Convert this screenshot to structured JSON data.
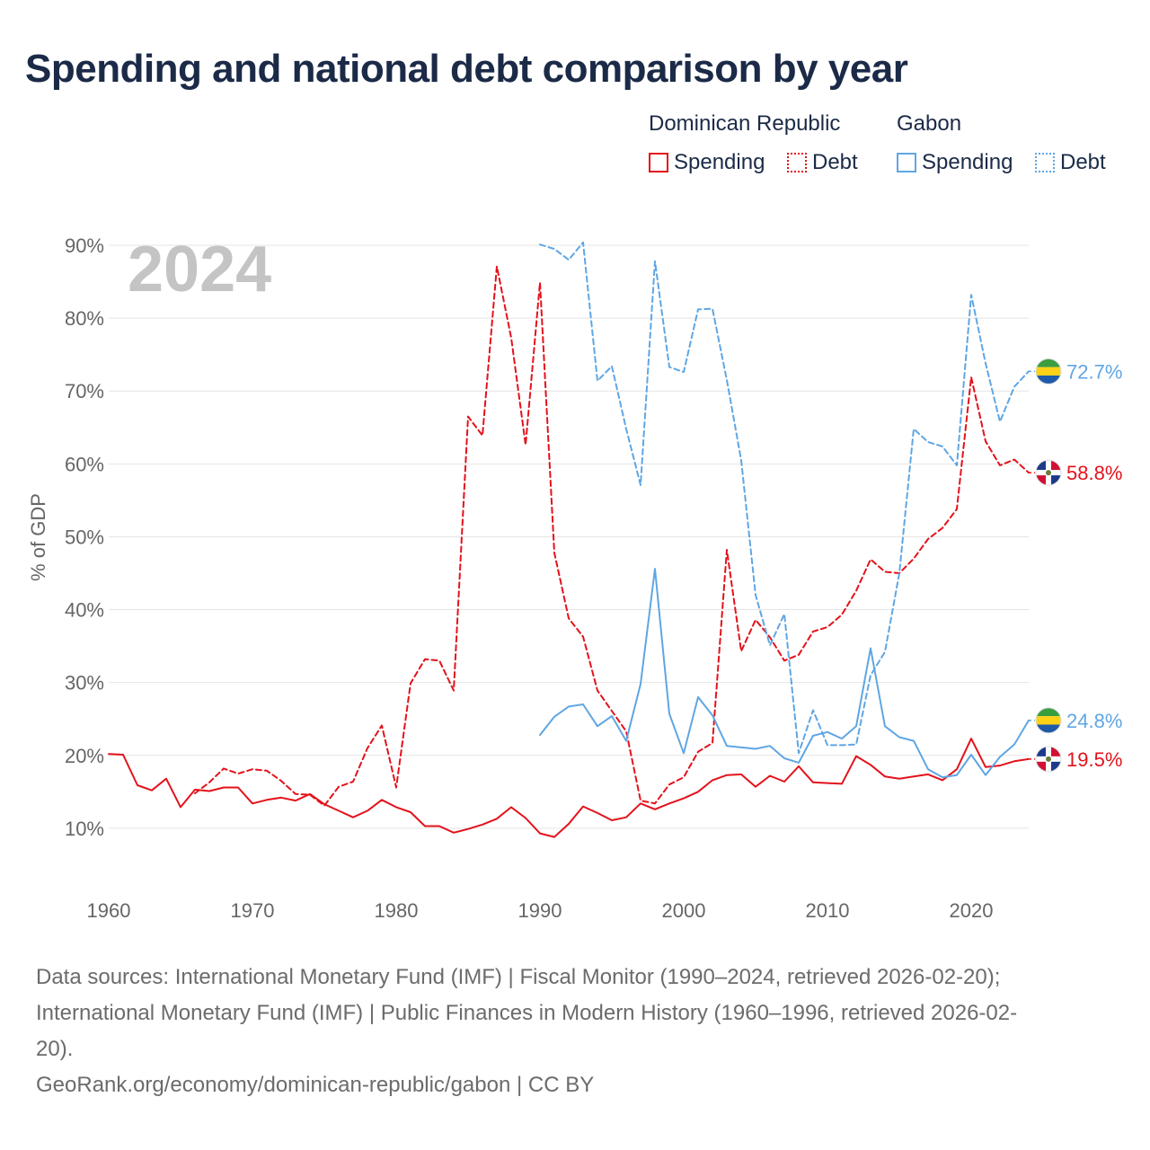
{
  "chart_data": {
    "type": "line",
    "title": "Spending and national debt comparison by year",
    "ylabel": "% of GDP",
    "xlabel": "",
    "xlim": [
      1960,
      2024
    ],
    "ylim": [
      0,
      90
    ],
    "x_ticks": [
      1960,
      1970,
      1980,
      1990,
      2000,
      2010,
      2020
    ],
    "x_tick_labels": [
      "1960",
      "1970",
      "1980",
      "1990",
      "2000",
      "2010",
      "2020"
    ],
    "y_ticks": [
      10,
      20,
      30,
      40,
      50,
      60,
      70,
      80,
      90
    ],
    "y_tick_labels": [
      "10%",
      "20%",
      "30%",
      "40%",
      "50%",
      "60%",
      "70%",
      "80%",
      "90%"
    ],
    "watermark_year": "2024",
    "legend": {
      "groups": [
        {
          "name": "Dominican Republic",
          "items": [
            {
              "label": "Spending",
              "style": "solid"
            },
            {
              "label": "Debt",
              "style": "dotted"
            }
          ]
        },
        {
          "name": "Gabon",
          "items": [
            {
              "label": "Spending",
              "style": "solid"
            },
            {
              "label": "Debt",
              "style": "dotted"
            }
          ]
        }
      ]
    },
    "series": [
      {
        "name": "Dominican Republic Spending",
        "country": "Dominican Republic",
        "color": "#e3121b",
        "dash": "solid",
        "end_label": "19.5%",
        "start_year": 1960,
        "values": [
          20.2,
          20.1,
          15.9,
          15.2,
          16.8,
          12.9,
          15.3,
          15.1,
          15.6,
          15.6,
          13.4,
          13.9,
          14.2,
          13.8,
          14.7,
          13.3,
          12.4,
          11.5,
          12.4,
          13.9,
          12.9,
          12.2,
          10.3,
          10.3,
          9.4,
          9.9,
          10.5,
          11.3,
          12.9,
          11.4,
          9.3,
          8.8,
          10.6,
          13.0,
          12.1,
          11.1,
          11.5,
          13.4,
          12.6,
          13.4,
          14.1,
          15.0,
          16.6,
          17.3,
          17.4,
          15.7,
          17.2,
          16.4,
          18.5,
          16.3,
          16.2,
          16.1,
          19.9,
          18.7,
          17.1,
          16.8,
          17.1,
          17.4,
          16.6,
          18.1,
          22.3,
          18.4,
          18.6,
          19.2,
          19.5
        ]
      },
      {
        "name": "Dominican Republic Debt",
        "country": "Dominican Republic",
        "color": "#e3121b",
        "dash": "dashed",
        "end_label": "58.8%",
        "start_year": 1966,
        "values": [
          14.8,
          16.3,
          18.2,
          17.5,
          18.1,
          17.9,
          16.5,
          14.7,
          14.6,
          13.1,
          15.7,
          16.4,
          21.0,
          24.1,
          15.6,
          29.9,
          33.2,
          33.0,
          28.9,
          66.5,
          63.9,
          87.1,
          77.3,
          62.6,
          84.9,
          47.8,
          38.8,
          36.3,
          28.9,
          26.1,
          23.3,
          13.8,
          13.4,
          16.0,
          17.0,
          20.5,
          21.7,
          48.2,
          34.3,
          38.6,
          36.2,
          33.0,
          33.8,
          37.0,
          37.6,
          39.3,
          42.6,
          46.9,
          45.2,
          45.0,
          47.0,
          49.7,
          51.2,
          53.8,
          71.9,
          63.1,
          59.8,
          60.6,
          58.8
        ]
      },
      {
        "name": "Gabon Spending",
        "country": "Gabon",
        "color": "#5fa6e3",
        "dash": "solid",
        "end_label": "24.8%",
        "start_year": 1990,
        "values": [
          22.8,
          25.3,
          26.7,
          27.0,
          24.0,
          25.4,
          22.0,
          29.8,
          45.6,
          25.7,
          20.3,
          28.0,
          25.5,
          21.3,
          21.1,
          20.9,
          21.3,
          19.6,
          19.0,
          22.7,
          23.2,
          22.3,
          24.0,
          34.7,
          24.0,
          22.5,
          22.0,
          18.1,
          17.0,
          17.3,
          20.1,
          17.3,
          19.8,
          21.5,
          24.8
        ]
      },
      {
        "name": "Gabon Debt",
        "country": "Gabon",
        "color": "#5fa6e3",
        "dash": "dashed",
        "end_label": "72.7%",
        "start_year": 1990,
        "values": [
          90.1,
          89.5,
          88.0,
          90.4,
          71.4,
          73.4,
          64.8,
          57.1,
          87.8,
          73.3,
          72.6,
          81.2,
          81.3,
          71.5,
          60.5,
          42.0,
          35.1,
          39.4,
          20.3,
          26.2,
          21.4,
          21.4,
          21.5,
          31.0,
          34.2,
          45.0,
          64.8,
          63.0,
          62.4,
          59.8,
          83.2,
          73.8,
          65.8,
          70.6,
          72.7
        ]
      }
    ]
  },
  "legend_swatch_colors": {
    "dominican_republic": "#e3121b",
    "gabon": "#5fa6e3"
  },
  "footer": {
    "sources_line1": "Data sources: International Monetary Fund (IMF) | Fiscal Monitor (1990–2024, retrieved 2026-02-20);",
    "sources_line2": "International Monetary Fund (IMF) | Public Finances in Modern History (1960–1996, retrieved 2026-02-",
    "sources_line3": "20).",
    "attribution": "GeoRank.org/economy/dominican-republic/gabon | CC BY"
  }
}
